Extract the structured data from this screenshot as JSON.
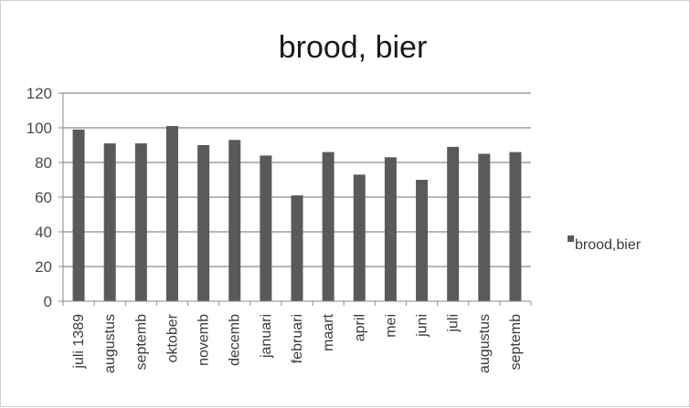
{
  "chart_data": {
    "type": "bar",
    "title": "brood, bier",
    "xlabel": "",
    "ylabel": "",
    "ylim": [
      0,
      120
    ],
    "yticks": [
      0,
      20,
      40,
      60,
      80,
      100,
      120
    ],
    "categories": [
      "juli 1389",
      "augustus",
      "septemb",
      "oktober",
      "novemb",
      "decemb",
      "januari",
      "februari",
      "maart",
      "april",
      "mei",
      "juni",
      "juli",
      "augustus",
      "septemb"
    ],
    "series": [
      {
        "name": "brood,bier",
        "color": "#5a5a5a",
        "values": [
          99,
          91,
          91,
          101,
          90,
          93,
          84,
          61,
          86,
          73,
          83,
          70,
          89,
          85,
          86
        ]
      }
    ],
    "grid": true,
    "legend_position": "right"
  }
}
